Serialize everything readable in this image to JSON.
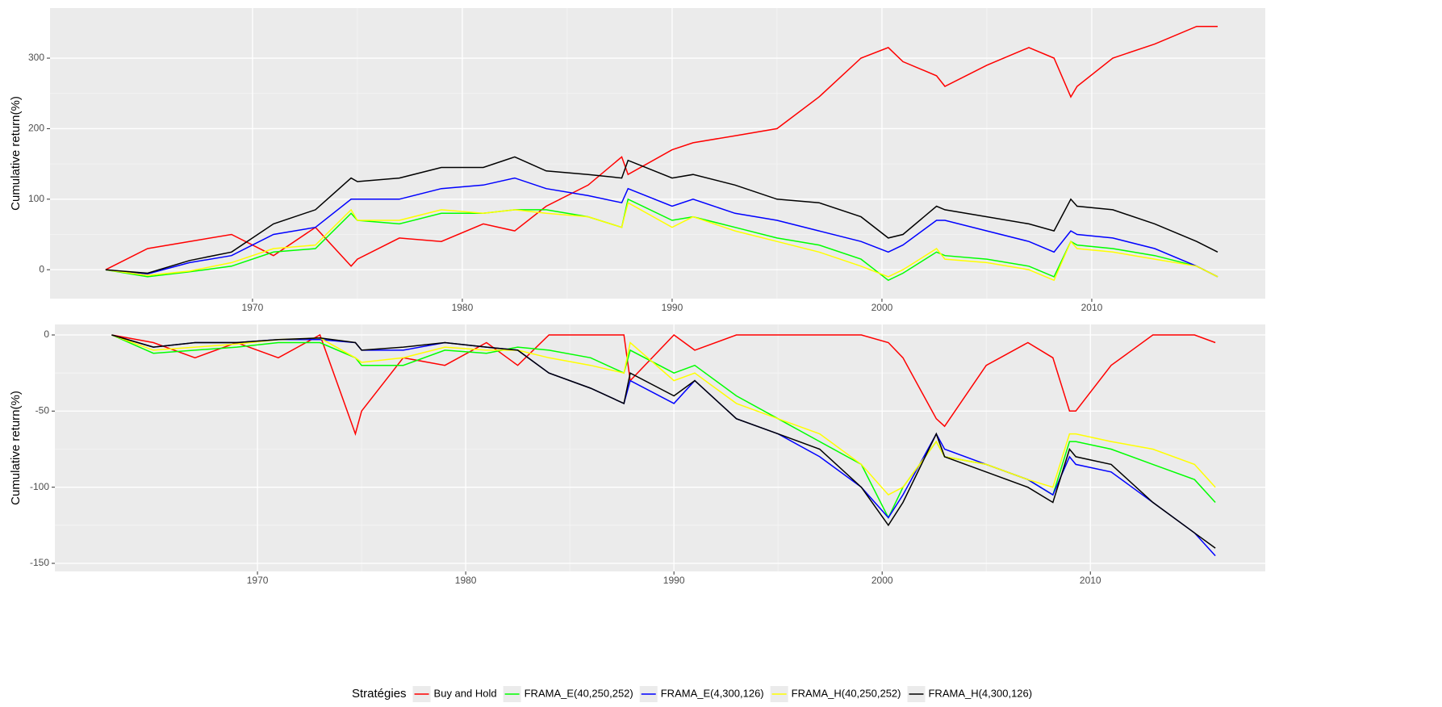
{
  "chart_data": [
    {
      "type": "line",
      "ylabel": "Cumulative return(%)",
      "legend_title": "Stratégies",
      "grid": true,
      "xlim": [
        1960.35,
        2018.27
      ],
      "ylim": [
        -41,
        371
      ],
      "xticks": [
        1970,
        1980,
        1990,
        2000,
        2010
      ],
      "yticks": [
        0,
        100,
        200,
        300
      ],
      "x": [
        1963,
        1965,
        1967,
        1969,
        1971,
        1973,
        1974.7,
        1975,
        1977,
        1979,
        1981,
        1982.5,
        1984,
        1986,
        1987.6,
        1987.9,
        1990,
        1991,
        1993,
        1995,
        1997,
        1999,
        2000.3,
        2001,
        2002.6,
        2003,
        2005,
        2007,
        2008.2,
        2009,
        2009.3,
        2011,
        2013,
        2015,
        2016
      ],
      "series": [
        {
          "name": "Buy and Hold",
          "color": "#ff0000",
          "values": [
            0,
            30,
            40,
            50,
            20,
            60,
            5,
            15,
            45,
            40,
            65,
            55,
            90,
            120,
            160,
            135,
            170,
            180,
            190,
            200,
            245,
            300,
            315,
            295,
            275,
            260,
            290,
            315,
            300,
            245,
            260,
            300,
            320,
            345,
            345
          ]
        },
        {
          "name": "FRAMA_E(40,250,252)",
          "color": "#00ff00",
          "values": [
            0,
            -10,
            -3,
            5,
            25,
            30,
            80,
            70,
            65,
            80,
            80,
            85,
            85,
            75,
            60,
            100,
            70,
            75,
            60,
            45,
            35,
            15,
            -15,
            -5,
            25,
            20,
            15,
            5,
            -10,
            40,
            35,
            30,
            20,
            5,
            -10
          ]
        },
        {
          "name": "FRAMA_E(4,300,126)",
          "color": "#0000ff",
          "values": [
            0,
            -6,
            10,
            20,
            50,
            60,
            100,
            100,
            100,
            115,
            120,
            130,
            115,
            105,
            95,
            115,
            90,
            100,
            80,
            70,
            55,
            40,
            25,
            35,
            70,
            70,
            55,
            40,
            25,
            55,
            50,
            45,
            30,
            5,
            -10
          ]
        },
        {
          "name": "FRAMA_H(40,250,252)",
          "color": "#ffff00",
          "values": [
            0,
            -8,
            -2,
            10,
            30,
            35,
            85,
            70,
            70,
            85,
            80,
            85,
            80,
            75,
            60,
            95,
            60,
            75,
            55,
            40,
            25,
            5,
            -10,
            0,
            30,
            15,
            10,
            0,
            -15,
            40,
            30,
            25,
            15,
            5,
            -10
          ]
        },
        {
          "name": "FRAMA_H(4,300,126)",
          "color": "#000000",
          "values": [
            0,
            -5,
            13,
            25,
            65,
            85,
            130,
            125,
            130,
            145,
            145,
            160,
            140,
            135,
            130,
            155,
            130,
            135,
            120,
            100,
            95,
            75,
            45,
            50,
            90,
            85,
            75,
            65,
            55,
            100,
            90,
            85,
            65,
            40,
            25
          ]
        }
      ]
    },
    {
      "type": "line",
      "ylabel": "Cumulative return(%)",
      "grid": true,
      "xlim": [
        1960.27,
        2018.4
      ],
      "ylim": [
        -155.3,
        6.9
      ],
      "xticks": [
        1970,
        1980,
        1990,
        2000,
        2010
      ],
      "yticks": [
        -150,
        -100,
        -50,
        0
      ],
      "x": [
        1963,
        1965,
        1967,
        1969,
        1971,
        1973,
        1974.7,
        1975,
        1977,
        1979,
        1981,
        1982.5,
        1984,
        1986,
        1987.6,
        1987.9,
        1990,
        1991,
        1993,
        1995,
        1997,
        1999,
        2000.3,
        2001,
        2002.6,
        2003,
        2005,
        2007,
        2008.2,
        2009,
        2009.3,
        2011,
        2013,
        2015,
        2016
      ],
      "series": [
        {
          "name": "Buy and Hold",
          "color": "#ff0000",
          "values": [
            0,
            -5,
            -15,
            -5,
            -15,
            0,
            -65,
            -50,
            -15,
            -20,
            -5,
            -20,
            0,
            0,
            0,
            -30,
            0,
            -10,
            0,
            0,
            0,
            0,
            -5,
            -15,
            -55,
            -60,
            -20,
            -5,
            -15,
            -50,
            -50,
            -20,
            0,
            0,
            -5
          ]
        },
        {
          "name": "FRAMA_E(40,250,252)",
          "color": "#00ff00",
          "values": [
            0,
            -12,
            -10,
            -8,
            -5,
            -5,
            -15,
            -20,
            -20,
            -10,
            -12,
            -8,
            -10,
            -15,
            -25,
            -10,
            -25,
            -20,
            -40,
            -55,
            -70,
            -85,
            -120,
            -100,
            -70,
            -80,
            -85,
            -95,
            -105,
            -70,
            -70,
            -75,
            -85,
            -95,
            -110
          ]
        },
        {
          "name": "FRAMA_E(4,300,126)",
          "color": "#0000ff",
          "values": [
            0,
            -8,
            -5,
            -5,
            -3,
            -3,
            -5,
            -10,
            -10,
            -5,
            -8,
            -10,
            -25,
            -35,
            -45,
            -30,
            -45,
            -30,
            -55,
            -65,
            -80,
            -100,
            -120,
            -105,
            -65,
            -75,
            -85,
            -95,
            -105,
            -80,
            -85,
            -90,
            -110,
            -130,
            -145
          ]
        },
        {
          "name": "FRAMA_H(40,250,252)",
          "color": "#ffff00",
          "values": [
            0,
            -10,
            -8,
            -6,
            -3,
            -2,
            -15,
            -18,
            -15,
            -8,
            -10,
            -10,
            -15,
            -20,
            -25,
            -5,
            -30,
            -25,
            -45,
            -55,
            -65,
            -85,
            -105,
            -100,
            -70,
            -80,
            -85,
            -95,
            -100,
            -65,
            -65,
            -70,
            -75,
            -85,
            -100
          ]
        },
        {
          "name": "FRAMA_H(4,300,126)",
          "color": "#000000",
          "values": [
            0,
            -8,
            -5,
            -5,
            -3,
            -2,
            -5,
            -10,
            -8,
            -5,
            -8,
            -10,
            -25,
            -35,
            -45,
            -25,
            -40,
            -30,
            -55,
            -65,
            -75,
            -100,
            -125,
            -110,
            -65,
            -80,
            -90,
            -100,
            -110,
            -75,
            -80,
            -85,
            -110,
            -130,
            -140
          ]
        }
      ]
    }
  ]
}
